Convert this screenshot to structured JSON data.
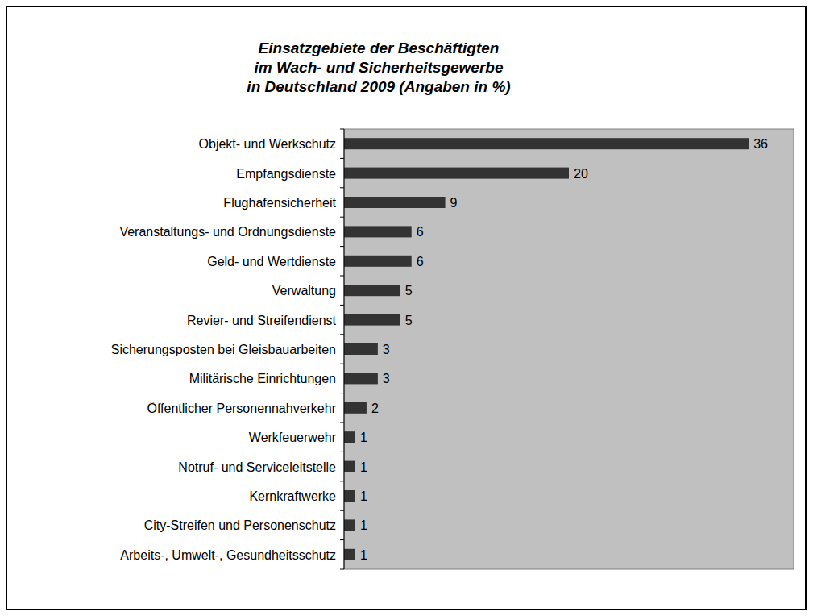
{
  "chart_data": {
    "type": "bar",
    "orientation": "horizontal",
    "title": "Einsatzgebiete der Beschäftigten\nim Wach- und Sicherheitsgewerbe\nin Deutschland 2009 (Angaben in %)",
    "categories": [
      "Objekt- und Werkschutz",
      "Empfangsdienste",
      "Flughafensicherheit",
      "Veranstaltungs- und Ordnungsdienste",
      "Geld- und Wertdienste",
      "Verwaltung",
      "Revier- und Streifendienst",
      "Sicherungsposten bei Gleisbauarbeiten",
      "Militärische Einrichtungen",
      "Öffentlicher Personennahverkehr",
      "Werkfeuerwehr",
      "Notruf- und Serviceleitstelle",
      "Kernkraftwerke",
      "City-Streifen und Personenschutz",
      "Arbeits-, Umwelt-, Gesundheitsschutz"
    ],
    "values": [
      36,
      20,
      9,
      6,
      6,
      5,
      5,
      3,
      3,
      2,
      1,
      1,
      1,
      1,
      1
    ],
    "color": "#333333",
    "ylim": [
      0,
      40
    ],
    "data_labels": true,
    "grid": false
  }
}
